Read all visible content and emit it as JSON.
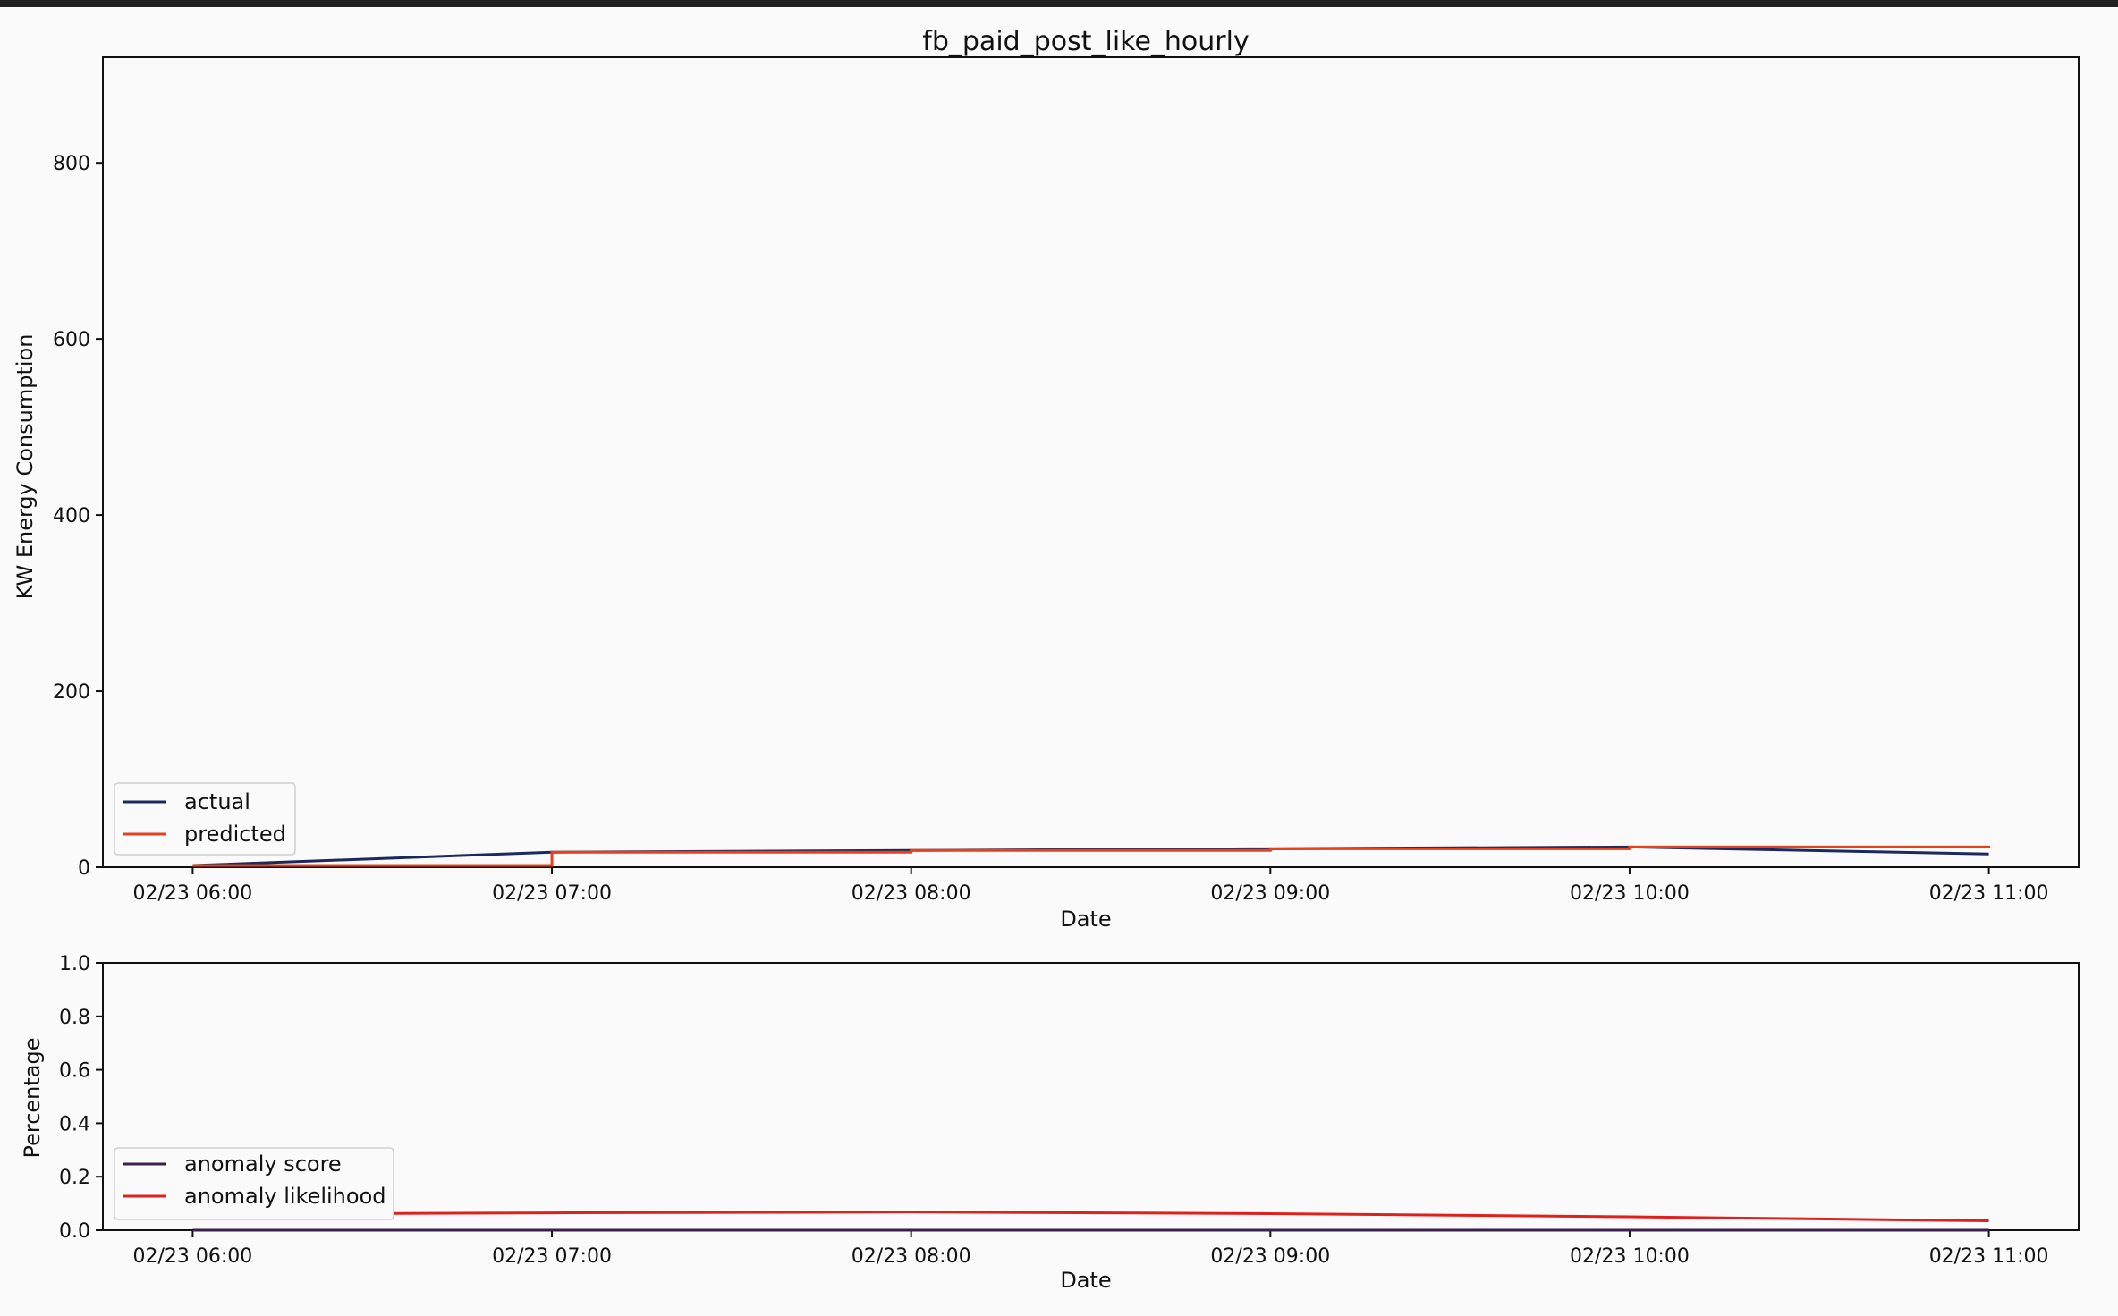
{
  "chart_data": [
    {
      "type": "line",
      "title": "fb_paid_post_like_hourly",
      "xlabel": "Date",
      "ylabel": "KW Energy Consumption",
      "x": [
        "02/23 06:00",
        "02/23 07:00",
        "02/23 08:00",
        "02/23 09:00",
        "02/23 10:00",
        "02/23 11:00"
      ],
      "xlim": [
        "02/23 05:45",
        "02/23 11:15"
      ],
      "ylim": [
        0,
        920
      ],
      "yticks": [
        0,
        200,
        400,
        600,
        800
      ],
      "grid": false,
      "legend": "lower-left",
      "series": [
        {
          "name": "actual",
          "color": "#1a2a5e",
          "values": [
            2,
            17,
            19,
            21,
            23,
            15
          ]
        },
        {
          "name": "predicted",
          "color": "#e8401c",
          "step": true,
          "values": [
            2,
            17,
            19,
            21,
            23,
            22
          ]
        }
      ]
    },
    {
      "type": "line",
      "xlabel": "Date",
      "ylabel": "Percentage",
      "x": [
        "02/23 06:00",
        "02/23 07:00",
        "02/23 08:00",
        "02/23 09:00",
        "02/23 10:00",
        "02/23 11:00"
      ],
      "xlim": [
        "02/23 05:45",
        "02/23 11:15"
      ],
      "ylim": [
        0.0,
        1.0
      ],
      "yticks": [
        "0.0",
        "0.2",
        "0.4",
        "0.6",
        "0.8",
        "1.0"
      ],
      "grid": false,
      "legend": "lower-left",
      "series": [
        {
          "name": "anomaly score",
          "color": "#3b1f4f",
          "values": [
            0.0,
            0.0,
            0.0,
            0.0,
            0.0,
            0.0
          ]
        },
        {
          "name": "anomaly likelihood",
          "color": "#e0201c",
          "values": [
            0.06,
            0.065,
            0.068,
            0.062,
            0.05,
            0.035
          ]
        }
      ]
    }
  ]
}
